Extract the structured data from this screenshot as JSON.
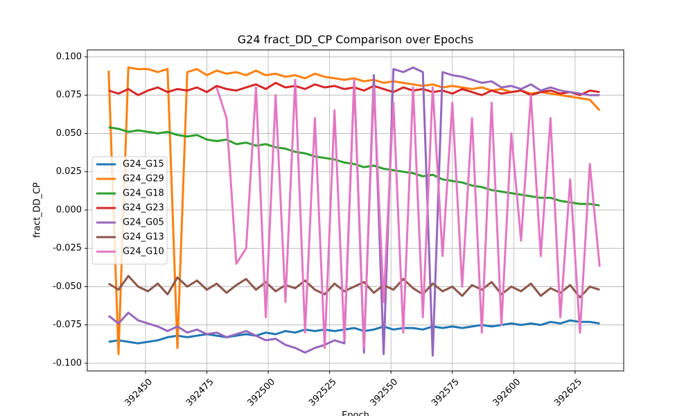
{
  "chart_data": {
    "type": "line",
    "title": "G24 fract_DD_CP Comparison over Epochs",
    "x_label": "Epoch",
    "y_label": "fract_DD_CP",
    "x": [
      392435,
      392439,
      392443,
      392447,
      392451,
      392455,
      392459,
      392463,
      392467,
      392471,
      392475,
      392479,
      392483,
      392487,
      392491,
      392495,
      392499,
      392503,
      392507,
      392511,
      392515,
      392519,
      392523,
      392527,
      392531,
      392535,
      392539,
      392543,
      392547,
      392551,
      392555,
      392559,
      392563,
      392567,
      392571,
      392575,
      392579,
      392583,
      392587,
      392591,
      392595,
      392599,
      392603,
      392607,
      392611,
      392615,
      392619,
      392623,
      392627,
      392631,
      392635
    ],
    "series": [
      {
        "name": "G24_G15",
        "color": "#1f77b4",
        "values": [
          -0.086,
          -0.085,
          -0.086,
          -0.087,
          -0.086,
          -0.085,
          -0.083,
          -0.082,
          -0.083,
          -0.082,
          -0.081,
          -0.082,
          -0.083,
          -0.082,
          -0.081,
          -0.082,
          -0.08,
          -0.081,
          -0.079,
          -0.08,
          -0.078,
          -0.079,
          -0.078,
          -0.079,
          -0.078,
          -0.077,
          -0.079,
          -0.078,
          -0.076,
          -0.078,
          -0.077,
          -0.077,
          -0.078,
          -0.076,
          -0.077,
          -0.076,
          -0.077,
          -0.076,
          -0.075,
          -0.076,
          -0.075,
          -0.074,
          -0.075,
          -0.074,
          -0.075,
          -0.073,
          -0.074,
          -0.072,
          -0.073,
          -0.073,
          -0.074
        ]
      },
      {
        "name": "G24_G29",
        "color": "#ff7f0e",
        "values": [
          0.091,
          -0.094,
          0.093,
          0.092,
          0.092,
          0.09,
          0.092,
          -0.09,
          0.09,
          0.092,
          0.088,
          0.091,
          0.089,
          0.09,
          0.088,
          0.091,
          0.088,
          0.089,
          0.087,
          0.088,
          0.086,
          0.089,
          0.087,
          0.086,
          0.085,
          0.086,
          0.084,
          0.085,
          0.083,
          0.084,
          0.083,
          0.082,
          0.081,
          0.082,
          0.08,
          0.081,
          0.08,
          0.079,
          0.08,
          0.078,
          0.079,
          0.077,
          0.078,
          0.076,
          0.077,
          0.076,
          0.075,
          0.074,
          0.073,
          0.072,
          0.065
        ]
      },
      {
        "name": "G24_G18",
        "color": "#2ca02c",
        "values": [
          0.054,
          0.053,
          0.051,
          0.052,
          0.051,
          0.05,
          0.051,
          0.049,
          0.048,
          0.049,
          0.046,
          0.045,
          0.046,
          0.043,
          0.044,
          0.042,
          0.043,
          0.041,
          0.04,
          0.038,
          0.037,
          0.035,
          0.034,
          0.033,
          0.031,
          0.03,
          0.028,
          0.029,
          0.027,
          0.026,
          0.025,
          0.024,
          0.022,
          0.023,
          0.02,
          0.019,
          0.018,
          0.016,
          0.015,
          0.013,
          0.012,
          0.011,
          0.01,
          0.009,
          0.008,
          0.008,
          0.006,
          0.005,
          0.004,
          0.004,
          0.003
        ]
      },
      {
        "name": "G24_G23",
        "color": "#d62728",
        "values": [
          0.078,
          0.076,
          0.079,
          0.075,
          0.078,
          0.08,
          0.077,
          0.079,
          0.078,
          0.08,
          0.077,
          0.081,
          0.079,
          0.078,
          0.08,
          0.082,
          0.079,
          0.083,
          0.08,
          0.081,
          0.079,
          0.082,
          0.08,
          0.081,
          0.079,
          0.08,
          0.078,
          0.081,
          0.079,
          0.077,
          0.08,
          0.078,
          0.079,
          0.077,
          0.078,
          0.076,
          0.079,
          0.077,
          0.075,
          0.078,
          0.076,
          0.077,
          0.078,
          0.075,
          0.077,
          0.078,
          0.076,
          0.077,
          0.075,
          0.078,
          0.077
        ]
      },
      {
        "name": "G24_G05",
        "color": "#9467bd",
        "values": [
          -0.069,
          -0.074,
          -0.067,
          -0.072,
          -0.074,
          -0.076,
          -0.079,
          -0.076,
          -0.08,
          -0.078,
          -0.081,
          -0.08,
          -0.083,
          -0.081,
          -0.079,
          -0.082,
          -0.085,
          -0.084,
          -0.088,
          -0.09,
          -0.093,
          -0.09,
          -0.088,
          -0.085,
          -0.087,
          0.085,
          -0.093,
          0.088,
          -0.094,
          0.092,
          0.09,
          0.093,
          0.09,
          -0.095,
          0.09,
          0.088,
          0.087,
          0.085,
          0.083,
          0.084,
          0.08,
          0.081,
          0.079,
          0.082,
          0.078,
          0.08,
          0.078,
          0.077,
          0.076,
          0.075,
          0.075
        ]
      },
      {
        "name": "G24_G13",
        "color": "#8c564b",
        "values": [
          -0.048,
          -0.052,
          -0.043,
          -0.05,
          -0.053,
          -0.048,
          -0.055,
          -0.044,
          -0.05,
          -0.046,
          -0.052,
          -0.048,
          -0.054,
          -0.049,
          -0.045,
          -0.052,
          -0.047,
          -0.053,
          -0.049,
          -0.051,
          -0.046,
          -0.052,
          -0.055,
          -0.048,
          -0.053,
          -0.05,
          -0.047,
          -0.054,
          -0.049,
          -0.052,
          -0.045,
          -0.051,
          -0.055,
          -0.048,
          -0.053,
          -0.05,
          -0.056,
          -0.049,
          -0.052,
          -0.047,
          -0.055,
          -0.05,
          -0.053,
          -0.048,
          -0.056,
          -0.051,
          -0.054,
          -0.049,
          -0.057,
          -0.05,
          -0.052
        ]
      },
      {
        "name": "G24_G10",
        "color": "#e377c2",
        "values": [
          null,
          null,
          null,
          null,
          null,
          null,
          null,
          null,
          null,
          null,
          null,
          0.08,
          0.06,
          -0.035,
          -0.025,
          0.08,
          -0.07,
          0.075,
          -0.06,
          0.085,
          -0.08,
          0.06,
          -0.09,
          0.065,
          -0.085,
          0.085,
          -0.09,
          0.08,
          -0.06,
          0.07,
          -0.08,
          0.08,
          -0.07,
          0.08,
          -0.03,
          0.07,
          -0.05,
          0.06,
          -0.08,
          0.07,
          -0.075,
          0.05,
          -0.02,
          0.075,
          -0.03,
          0.06,
          -0.07,
          0.02,
          -0.08,
          0.03,
          -0.037
        ]
      }
    ],
    "xlim": [
      392426.3,
      392644.8
    ],
    "ylim": [
      -0.105,
      0.1045
    ],
    "xticks": [
      392450,
      392475,
      392500,
      392525,
      392550,
      392575,
      392600,
      392625
    ],
    "yticks": [
      {
        "value": -0.1,
        "label": "-0.100"
      },
      -0.075,
      {
        "value": -0.05,
        "label": "-0.050"
      },
      -0.025,
      {
        "value": 0,
        "label": "0.000"
      },
      0.025,
      {
        "value": 0.05,
        "label": "0.050"
      },
      0.075,
      {
        "value": 0.1,
        "label": "0.100"
      }
    ],
    "grid": true,
    "legend": "center left"
  }
}
